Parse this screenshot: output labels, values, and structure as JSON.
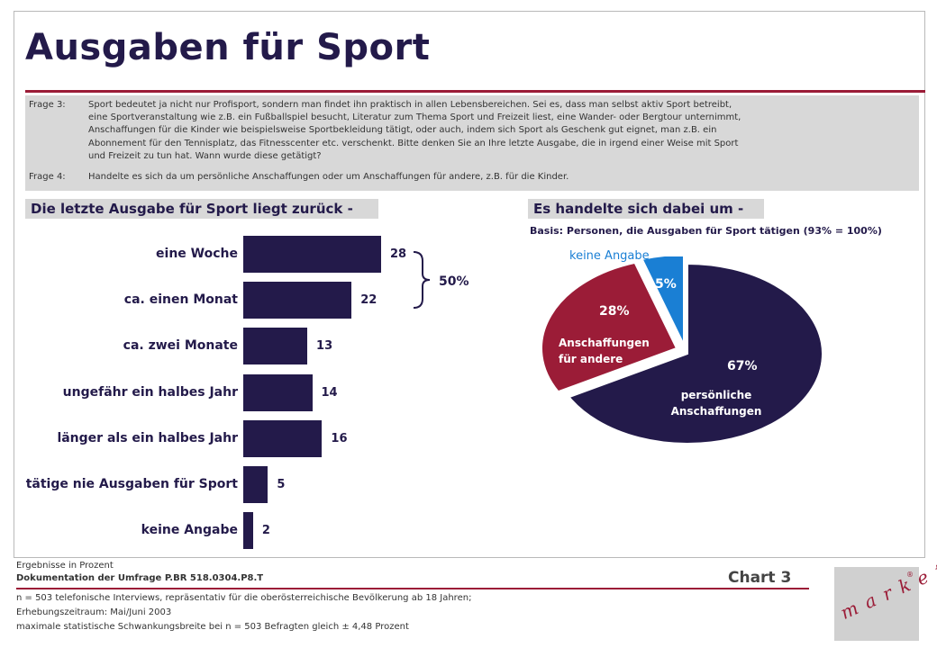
{
  "title": "Ausgaben für Sport",
  "questions": [
    {
      "label": "Frage 3:",
      "lines": [
        "Sport bedeutet ja nicht nur Profisport, sondern man findet ihn praktisch in allen Lebensbereichen. Sei es, dass man selbst aktiv Sport betreibt,",
        "eine Sportveranstaltung wie z.B. ein Fußballspiel besucht, Literatur zum Thema Sport und Freizeit liest, eine Wander- oder Bergtour unternimmt,",
        "Anschaffungen für die Kinder wie beispielsweise Sportbekleidung tätigt, oder auch, indem sich Sport als Geschenk gut eignet, man z.B. ein",
        "Abonnement für den Tennisplatz, das Fitnesscenter etc. verschenkt. Bitte denken Sie an Ihre letzte Ausgabe, die in irgend einer Weise mit Sport",
        "und Freizeit zu tun hat. Wann wurde diese getätigt?"
      ]
    },
    {
      "label": "Frage 4:",
      "lines": [
        "Handelte es sich da um persönliche Anschaffungen oder um Anschaffungen für andere, z.B. für die Kinder."
      ]
    }
  ],
  "left_heading": "Die letzte Ausgabe für Sport liegt zurück -",
  "right_heading": "Es handelte sich dabei um -",
  "basis": "Basis: Personen, die Ausgaben für Sport tätigen (93% = 100%)",
  "brace_label": "50%",
  "chart_data": [
    {
      "type": "bar",
      "orientation": "horizontal",
      "title": "Die letzte Ausgabe für Sport liegt zurück -",
      "categories": [
        "eine Woche",
        "ca. einen Monat",
        "ca. zwei Monate",
        "ungefähr ein halbes Jahr",
        "länger als ein halbes Jahr",
        "tätige nie Ausgaben für Sport",
        "keine Angabe"
      ],
      "values": [
        28,
        22,
        13,
        14,
        16,
        5,
        2
      ],
      "unit": "Prozent",
      "annotation": {
        "text": "50%",
        "spans": [
          "eine Woche",
          "ca. einen Monat"
        ]
      },
      "color": "#231a4a"
    },
    {
      "type": "pie",
      "title": "Es handelte sich dabei um -",
      "slices": [
        {
          "label": "persönliche Anschaffungen",
          "value": 67,
          "value_label": "67%",
          "color": "#231a4a"
        },
        {
          "label": "Anschaffungen für andere",
          "value": 28,
          "value_label": "28%",
          "color": "#9b1c37"
        },
        {
          "label": "keine Angabe",
          "value": 5,
          "value_label": "5%",
          "color": "#1a7fd4"
        }
      ]
    }
  ],
  "pie_text": {
    "persoenlich_line1": "persönliche",
    "persoenlich_line2": "Anschaffungen",
    "andere_line1": "Anschaffungen",
    "andere_line2": "für andere"
  },
  "footer": {
    "results_note": "Ergebnisse in Prozent",
    "documentation": "Dokumentation der Umfrage P.BR 518.0304.P8.T",
    "chart_label": "Chart 3",
    "line1": "n = 503 telefonische Interviews, repräsentativ für die oberösterreichische Bevölkerung ab 18 Jahren;",
    "line2": "Erhebungszeitraum: Mai/Juni 2003",
    "line3": "maximale statistische Schwankungsbreite bei n = 503 Befragten gleich ± 4,48 Prozent"
  },
  "logo_text": "market",
  "logo_mark": "®",
  "colors": {
    "navy": "#231a4a",
    "crimson": "#9b1c37",
    "blue": "#1a7fd4",
    "grey": "#d8d8d8"
  }
}
